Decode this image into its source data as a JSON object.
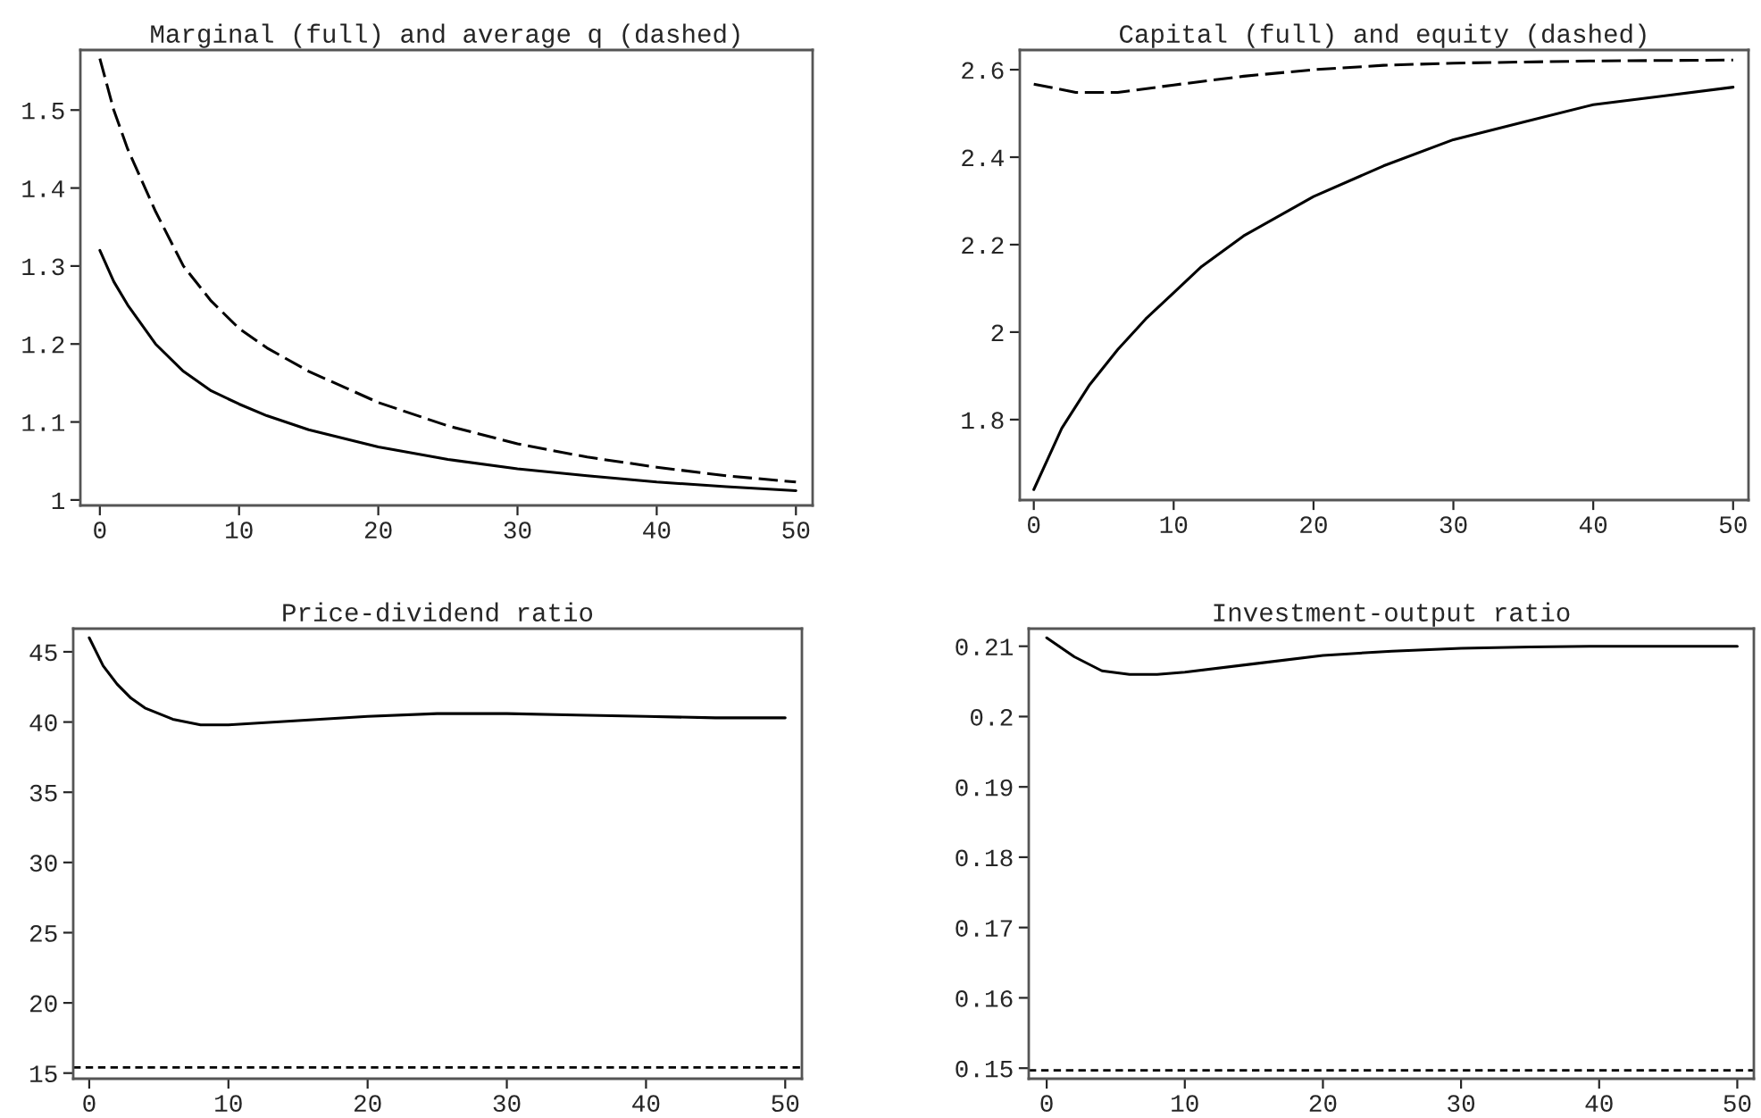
{
  "chart_data": [
    {
      "type": "line",
      "title": "Marginal (full) and average q (dashed)",
      "xlim": [
        -1.4,
        51.2
      ],
      "xticks": [
        0,
        10,
        20,
        30,
        40,
        50
      ],
      "ylim": [
        0.993,
        1.577
      ],
      "yticks": [
        1,
        1.1,
        1.2,
        1.3,
        1.4,
        1.5
      ],
      "grid": false,
      "series": [
        {
          "color": "#000000",
          "line_style": "solid",
          "x": [
            0,
            1,
            2,
            4,
            6,
            8,
            10,
            12,
            15,
            20,
            25,
            30,
            35,
            40,
            45,
            50
          ],
          "values": [
            1.32,
            1.28,
            1.25,
            1.2,
            1.165,
            1.14,
            1.123,
            1.108,
            1.09,
            1.068,
            1.052,
            1.04,
            1.031,
            1.023,
            1.017,
            1.012
          ]
        },
        {
          "color": "#000000",
          "line_style": "dashed",
          "x": [
            0,
            1,
            2,
            4,
            6,
            8,
            10,
            12,
            15,
            20,
            25,
            30,
            35,
            40,
            45,
            50
          ],
          "values": [
            1.566,
            1.5,
            1.45,
            1.37,
            1.3,
            1.255,
            1.22,
            1.195,
            1.165,
            1.125,
            1.095,
            1.072,
            1.055,
            1.042,
            1.031,
            1.023
          ]
        }
      ]
    },
    {
      "type": "line",
      "title": "Capital (full) and equity (dashed)",
      "xlim": [
        -1.0,
        51.1
      ],
      "xticks": [
        0,
        10,
        20,
        30,
        40,
        50
      ],
      "ylim": [
        1.616,
        2.645
      ],
      "yticks": [
        1.8,
        2,
        2.2,
        2.4,
        2.6
      ],
      "grid": false,
      "series": [
        {
          "color": "#000000",
          "line_style": "solid",
          "x": [
            0,
            2,
            4,
            6,
            8,
            10,
            12,
            15,
            20,
            25,
            30,
            35,
            40,
            45,
            50
          ],
          "values": [
            1.64,
            1.78,
            1.88,
            1.96,
            2.03,
            2.09,
            2.15,
            2.22,
            2.31,
            2.38,
            2.44,
            2.48,
            2.52,
            2.54,
            2.56
          ]
        },
        {
          "color": "#000000",
          "line_style": "dashed",
          "x": [
            0,
            3,
            6,
            10,
            15,
            20,
            25,
            30,
            40,
            50
          ],
          "values": [
            2.567,
            2.548,
            2.548,
            2.565,
            2.585,
            2.6,
            2.61,
            2.615,
            2.62,
            2.622
          ]
        }
      ]
    },
    {
      "type": "line",
      "title": "Price-dividend ratio",
      "xlim": [
        -1.15,
        51.2
      ],
      "xticks": [
        0,
        10,
        20,
        30,
        40,
        50
      ],
      "ylim": [
        14.6,
        46.65
      ],
      "yticks": [
        15,
        20,
        25,
        30,
        35,
        40,
        45
      ],
      "grid": false,
      "series": [
        {
          "color": "#000000",
          "line_style": "solid",
          "x": [
            0,
            1,
            2,
            3,
            4,
            6,
            8,
            10,
            15,
            20,
            25,
            30,
            35,
            40,
            45,
            50
          ],
          "values": [
            46,
            44,
            42.7,
            41.7,
            41,
            40.2,
            39.8,
            39.8,
            40.1,
            40.4,
            40.6,
            40.6,
            40.5,
            40.4,
            40.3,
            40.3
          ]
        }
      ],
      "ref_lines": [
        {
          "axis": "y",
          "value": 15.4,
          "color": "#000000",
          "line_style": "dashed"
        }
      ]
    },
    {
      "type": "line",
      "title": "Investment-output ratio",
      "xlim": [
        -1.3,
        51.2
      ],
      "xticks": [
        0,
        10,
        20,
        30,
        40,
        50
      ],
      "ylim": [
        0.1485,
        0.2125
      ],
      "yticks": [
        0.15,
        0.16,
        0.17,
        0.18,
        0.19,
        0.2,
        0.21
      ],
      "grid": false,
      "series": [
        {
          "color": "#000000",
          "line_style": "solid",
          "x": [
            0,
            2,
            4,
            6,
            8,
            10,
            15,
            20,
            25,
            30,
            35,
            40,
            50
          ],
          "values": [
            0.2112,
            0.2085,
            0.2065,
            0.206,
            0.206,
            0.2063,
            0.2075,
            0.2087,
            0.2093,
            0.2097,
            0.2099,
            0.21,
            0.21
          ]
        }
      ],
      "ref_lines": [
        {
          "axis": "y",
          "value": 0.1497,
          "color": "#000000",
          "line_style": "dashed"
        }
      ]
    }
  ]
}
